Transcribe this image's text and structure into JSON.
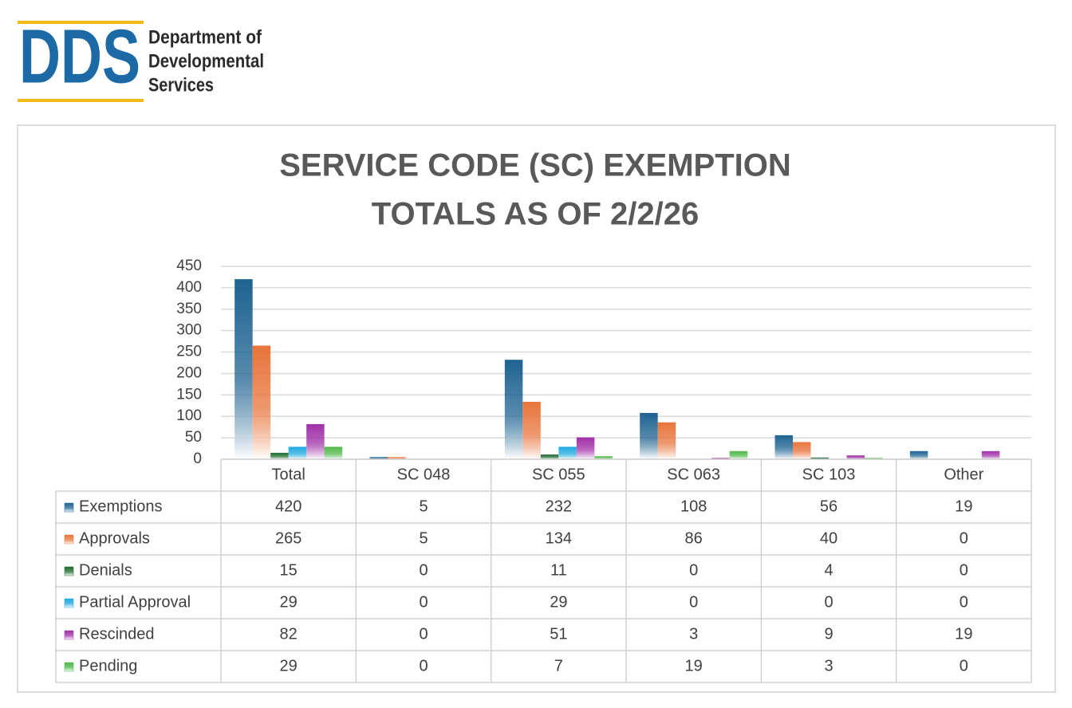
{
  "header": {
    "logo": "DDS",
    "org": [
      "Department of",
      "Developmental",
      "Services"
    ]
  },
  "chart_data": {
    "type": "bar",
    "title": [
      "SERVICE CODE (SC) EXEMPTION",
      "TOTALS AS OF  2/2/26"
    ],
    "categories": [
      "Total",
      "SC 048",
      "SC 055",
      "SC 063",
      "SC 103",
      "Other"
    ],
    "series": [
      {
        "name": "Exemptions",
        "color": "#1f6391",
        "values": [
          420,
          5,
          232,
          108,
          56,
          19
        ]
      },
      {
        "name": "Approvals",
        "color": "#e8743b",
        "values": [
          265,
          5,
          134,
          86,
          40,
          0
        ]
      },
      {
        "name": "Denials",
        "color": "#1e6b30",
        "values": [
          15,
          0,
          11,
          0,
          4,
          0
        ]
      },
      {
        "name": "Partial Approval",
        "color": "#1fa8e0",
        "values": [
          29,
          0,
          29,
          0,
          0,
          0
        ]
      },
      {
        "name": "Rescinded",
        "color": "#a030a8",
        "values": [
          82,
          0,
          51,
          3,
          9,
          19
        ]
      },
      {
        "name": "Pending",
        "color": "#4fb848",
        "values": [
          29,
          0,
          7,
          19,
          3,
          0
        ]
      }
    ],
    "ylim": [
      0,
      450
    ],
    "yticks": [
      0,
      50,
      100,
      150,
      200,
      250,
      300,
      350,
      400,
      450
    ],
    "grid": true
  }
}
